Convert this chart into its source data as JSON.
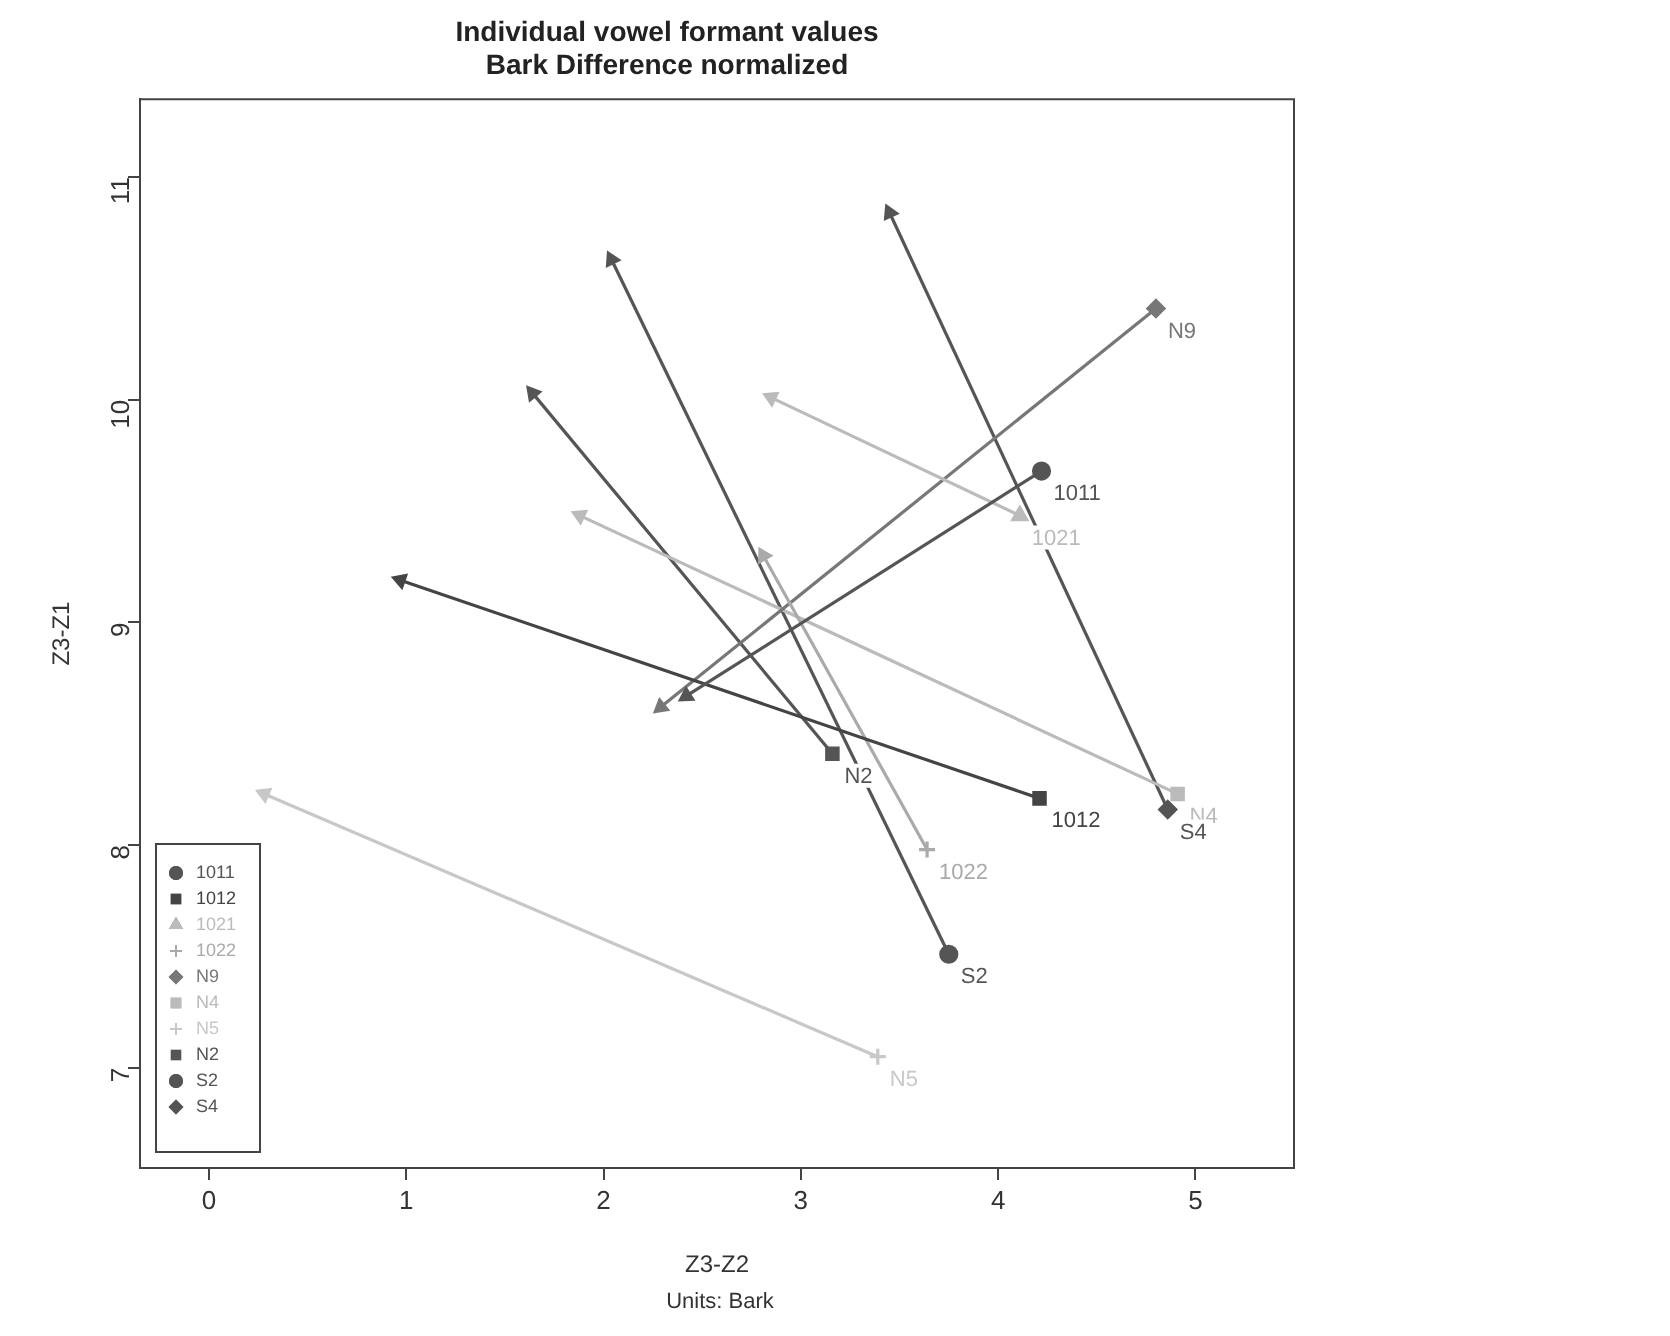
{
  "chart_data": {
    "type": "line",
    "title": "Individual vowel formant values",
    "subtitle": "Bark Difference normalized",
    "xlabel": "Z3-Z2",
    "ylabel": "Z3-Z1",
    "annotations": [
      "Units: Bark"
    ],
    "xlim": [
      -0.35,
      5.5
    ],
    "ylim": [
      6.55,
      11.35
    ],
    "xticks": [
      0,
      1,
      2,
      3,
      4,
      5
    ],
    "yticks": [
      7,
      8,
      9,
      10,
      11
    ],
    "grid": false,
    "legend": "bottom left",
    "line_style": "solid",
    "series": [
      {
        "name": "1011",
        "color": "#555555",
        "marker": "circle",
        "x": [
          4.22,
          2.42
        ],
        "values": [
          9.68,
          8.67
        ]
      },
      {
        "name": "1012",
        "color": "#444444",
        "marker": "square",
        "x": [
          4.21,
          0.97
        ],
        "values": [
          8.21,
          9.19
        ]
      },
      {
        "name": "1021",
        "color": "#bbbbbb",
        "marker": "triangle",
        "x": [
          4.11,
          2.85
        ],
        "values": [
          9.48,
          10.01
        ]
      },
      {
        "name": "1022",
        "color": "#aaaaaa",
        "marker": "cross",
        "x": [
          3.64,
          2.81
        ],
        "values": [
          7.98,
          9.3
        ]
      },
      {
        "name": "N9",
        "color": "#777777",
        "marker": "diamond",
        "x": [
          4.8,
          2.29
        ],
        "values": [
          10.41,
          8.62
        ]
      },
      {
        "name": "N4",
        "color": "#bbbbbb",
        "marker": "square",
        "x": [
          4.91,
          1.88
        ],
        "values": [
          8.23,
          9.48
        ]
      },
      {
        "name": "N5",
        "color": "#c8c8c8",
        "marker": "cross",
        "x": [
          3.39,
          0.28
        ],
        "values": [
          7.05,
          8.23
        ]
      },
      {
        "name": "N2",
        "color": "#555555",
        "marker": "square",
        "x": [
          3.16,
          1.64
        ],
        "values": [
          8.41,
          10.03
        ]
      },
      {
        "name": "S2",
        "color": "#555555",
        "marker": "circle",
        "x": [
          3.75,
          2.04
        ],
        "values": [
          7.51,
          10.63
        ]
      },
      {
        "name": "S4",
        "color": "#555555",
        "marker": "diamond",
        "x": [
          4.86,
          3.45
        ],
        "values": [
          8.16,
          10.84
        ]
      }
    ]
  }
}
